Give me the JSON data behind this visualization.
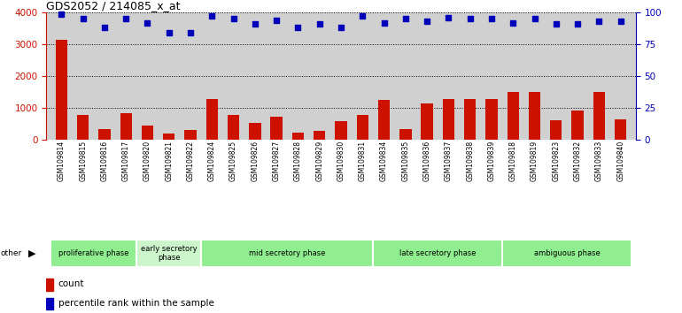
{
  "title": "GDS2052 / 214085_x_at",
  "samples": [
    "GSM109814",
    "GSM109815",
    "GSM109816",
    "GSM109817",
    "GSM109820",
    "GSM109821",
    "GSM109822",
    "GSM109824",
    "GSM109825",
    "GSM109826",
    "GSM109827",
    "GSM109828",
    "GSM109829",
    "GSM109830",
    "GSM109831",
    "GSM109834",
    "GSM109835",
    "GSM109836",
    "GSM109837",
    "GSM109838",
    "GSM109839",
    "GSM109818",
    "GSM109819",
    "GSM109823",
    "GSM109832",
    "GSM109833",
    "GSM109840"
  ],
  "counts": [
    3130,
    780,
    310,
    820,
    420,
    180,
    300,
    1280,
    780,
    510,
    720,
    200,
    270,
    560,
    780,
    1250,
    330,
    1120,
    1260,
    1260,
    1260,
    1500,
    1500,
    600,
    900,
    1480,
    620
  ],
  "percentile_ranks": [
    99,
    95,
    88,
    95,
    92,
    84,
    84,
    97,
    95,
    91,
    94,
    88,
    91,
    88,
    97,
    92,
    95,
    93,
    96,
    95,
    95,
    92,
    95,
    91,
    91,
    93,
    93
  ],
  "phases": [
    {
      "label": "proliferative phase",
      "start": 0,
      "end": 4,
      "color": "#90EE90"
    },
    {
      "label": "early secretory\nphase",
      "start": 4,
      "end": 7,
      "color": "#ccf5cc"
    },
    {
      "label": "mid secretory phase",
      "start": 7,
      "end": 15,
      "color": "#90EE90"
    },
    {
      "label": "late secretory phase",
      "start": 15,
      "end": 21,
      "color": "#90EE90"
    },
    {
      "label": "ambiguous phase",
      "start": 21,
      "end": 27,
      "color": "#90EE90"
    }
  ],
  "bar_color": "#cc1100",
  "dot_color": "#0000bb",
  "bg_color": "#d0d0d0",
  "ylim_left": [
    0,
    4000
  ],
  "ylim_right": [
    0,
    100
  ],
  "yticks_left": [
    0,
    1000,
    2000,
    3000,
    4000
  ],
  "yticks_right": [
    0,
    25,
    50,
    75,
    100
  ],
  "left_axis_color": "#cc1100",
  "right_axis_color": "#0000bb"
}
